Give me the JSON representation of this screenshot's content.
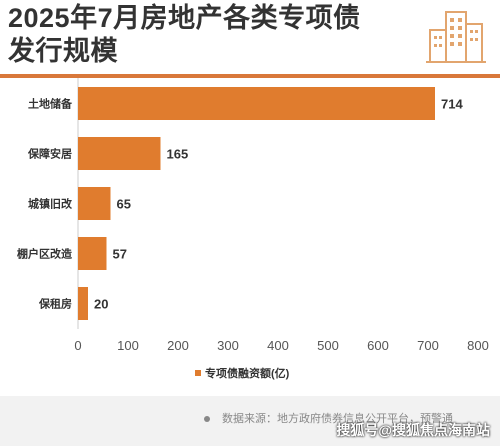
{
  "header": {
    "title_line1": "2025年7月房地产各类专项债",
    "title_line2": "发行规模"
  },
  "chart_data": {
    "type": "bar",
    "orientation": "horizontal",
    "categories": [
      "土地储备",
      "保障安居",
      "城镇旧改",
      "棚户区改造",
      "保租房"
    ],
    "values": [
      714,
      165,
      65,
      57,
      20
    ],
    "xlim": [
      0,
      800
    ],
    "xticks": [
      "0",
      "100",
      "200",
      "300",
      "400",
      "500",
      "600",
      "700",
      "800"
    ],
    "data_labels": [
      "714",
      "165",
      "65",
      "57",
      "20"
    ],
    "legend": "专项债融资额(亿)",
    "legend_position": "bottom",
    "color": "#e07c2e",
    "grid": false
  },
  "footer": {
    "source": "数据来源：地方政府债券信息公开平台，预警通",
    "watermark": "搜狐号@搜狐焦点海南站"
  },
  "icons": [
    "buildings-icon"
  ]
}
